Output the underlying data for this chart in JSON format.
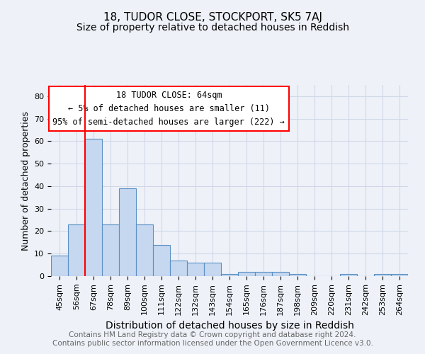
{
  "title": "18, TUDOR CLOSE, STOCKPORT, SK5 7AJ",
  "subtitle": "Size of property relative to detached houses in Reddish",
  "xlabel": "Distribution of detached houses by size in Reddish",
  "ylabel": "Number of detached properties",
  "categories": [
    "45sqm",
    "56sqm",
    "67sqm",
    "78sqm",
    "89sqm",
    "100sqm",
    "111sqm",
    "122sqm",
    "132sqm",
    "143sqm",
    "154sqm",
    "165sqm",
    "176sqm",
    "187sqm",
    "198sqm",
    "209sqm",
    "220sqm",
    "231sqm",
    "242sqm",
    "253sqm",
    "264sqm"
  ],
  "values": [
    9,
    23,
    61,
    23,
    39,
    23,
    14,
    7,
    6,
    6,
    1,
    2,
    2,
    2,
    1,
    0,
    0,
    1,
    0,
    1,
    1
  ],
  "bar_color": "#c5d8f0",
  "bar_edge_color": "#5a8fc2",
  "annotation_text": "18 TUDOR CLOSE: 64sqm\n← 5% of detached houses are smaller (11)\n95% of semi-detached houses are larger (222) →",
  "annotation_box_color": "white",
  "annotation_box_edge_color": "red",
  "ylim": [
    0,
    85
  ],
  "yticks": [
    0,
    10,
    20,
    30,
    40,
    50,
    60,
    70,
    80
  ],
  "grid_color": "#d0d8e8",
  "footer": "Contains HM Land Registry data © Crown copyright and database right 2024.\nContains public sector information licensed under the Open Government Licence v3.0.",
  "background_color": "#eef2f8",
  "title_fontsize": 11,
  "subtitle_fontsize": 10,
  "xlabel_fontsize": 10,
  "ylabel_fontsize": 9,
  "tick_fontsize": 8,
  "footer_fontsize": 7.5,
  "annotation_fontsize": 8.5
}
